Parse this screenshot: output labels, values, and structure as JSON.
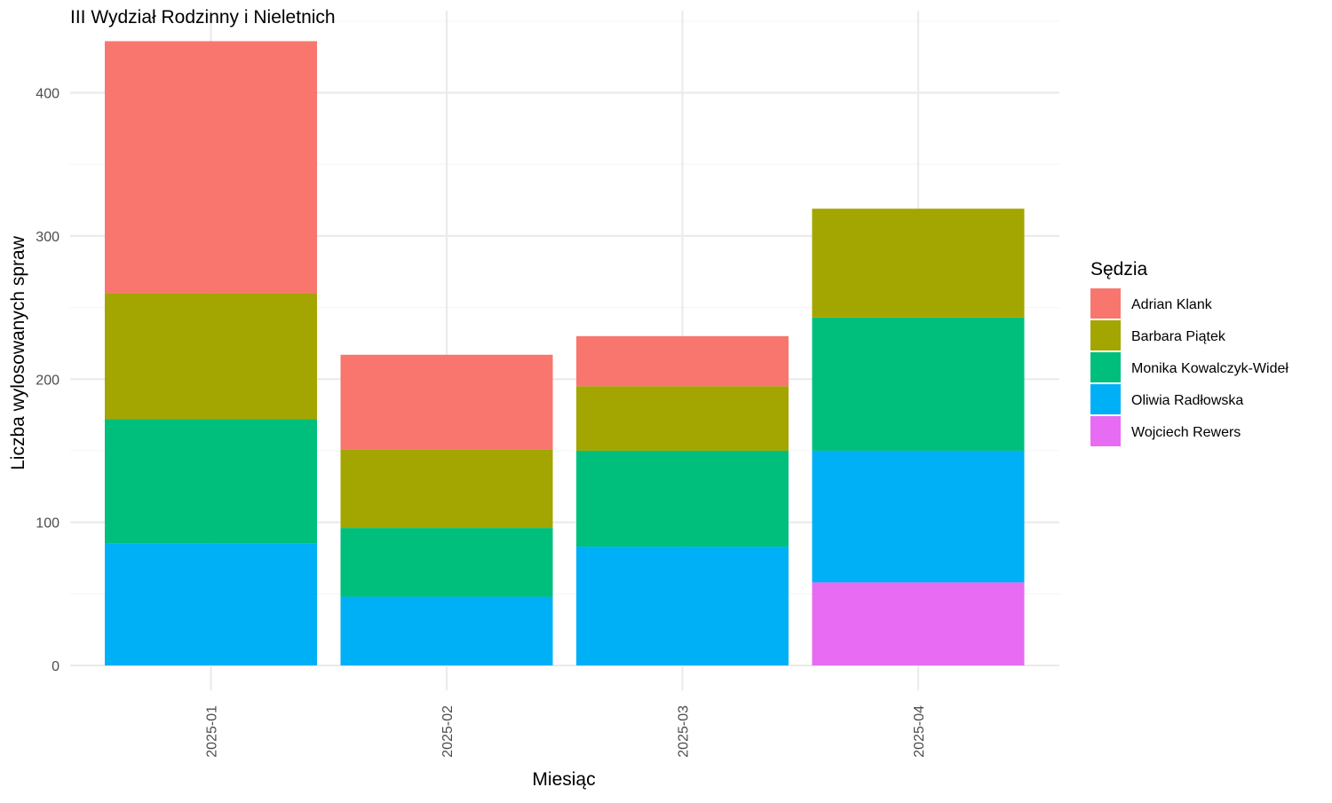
{
  "chart_data": {
    "type": "bar",
    "stacked": true,
    "title": "III Wydział Rodzinny i Nieletnich",
    "xlabel": "Miesiąc",
    "ylabel": "Liczba wylosowanych spraw",
    "ylim": [
      0,
      440
    ],
    "y_ticks": [
      0,
      100,
      200,
      300,
      400
    ],
    "grid": true,
    "categories": [
      "2025-01",
      "2025-02",
      "2025-03",
      "2025-04"
    ],
    "legend": {
      "title": "Sędzia",
      "position": "right"
    },
    "series": [
      {
        "name": "Adrian Klank",
        "color": "#F8766D",
        "values": [
          176,
          66,
          35,
          0
        ]
      },
      {
        "name": "Barbara Piątek",
        "color": "#A3A500",
        "values": [
          88,
          55,
          45,
          76
        ]
      },
      {
        "name": "Monika Kowalczyk-Wideł",
        "color": "#00BF7D",
        "values": [
          87,
          48,
          67,
          93
        ]
      },
      {
        "name": "Oliwia Radłowska",
        "color": "#00B0F6",
        "values": [
          85,
          48,
          83,
          92
        ]
      },
      {
        "name": "Wojciech Rewers",
        "color": "#E76BF3",
        "values": [
          0,
          0,
          0,
          58
        ]
      }
    ]
  }
}
